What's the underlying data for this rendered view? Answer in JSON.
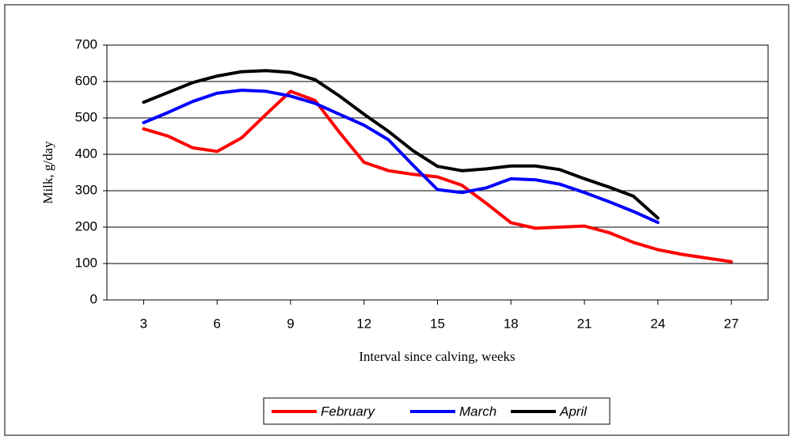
{
  "chart_data": {
    "type": "line",
    "xlabel": "Interval since calving, weeks",
    "ylabel": "Milk, g/day",
    "x": [
      3,
      4,
      5,
      6,
      7,
      8,
      9,
      10,
      11,
      12,
      13,
      14,
      15,
      16,
      17,
      18,
      19,
      20,
      21,
      22,
      23,
      24,
      25,
      26,
      27
    ],
    "series": [
      {
        "name": "February",
        "color": "#ff0000",
        "values": [
          470,
          450,
          418,
          408,
          445,
          510,
          573,
          548,
          460,
          378,
          355,
          345,
          338,
          315,
          265,
          212,
          197,
          200,
          203,
          185,
          158,
          138,
          125,
          115,
          105
        ]
      },
      {
        "name": "March",
        "color": "#0000ff",
        "values": [
          487,
          515,
          545,
          568,
          576,
          573,
          560,
          540,
          510,
          480,
          440,
          370,
          303,
          295,
          308,
          333,
          330,
          318,
          295,
          270,
          243,
          213,
          null,
          null,
          null
        ]
      },
      {
        "name": "April",
        "color": "#000000",
        "values": [
          543,
          570,
          597,
          615,
          627,
          630,
          625,
          605,
          560,
          510,
          463,
          410,
          367,
          355,
          360,
          368,
          368,
          358,
          333,
          310,
          285,
          225,
          null,
          null,
          null
        ]
      }
    ],
    "xlim": [
      1.5,
      28.5
    ],
    "xticks": [
      3,
      6,
      9,
      12,
      15,
      18,
      21,
      24,
      27
    ],
    "ylim": [
      0,
      700
    ],
    "yticks": [
      0,
      100,
      200,
      300,
      400,
      500,
      600,
      700
    ],
    "grid": true,
    "legend": "bottom"
  }
}
